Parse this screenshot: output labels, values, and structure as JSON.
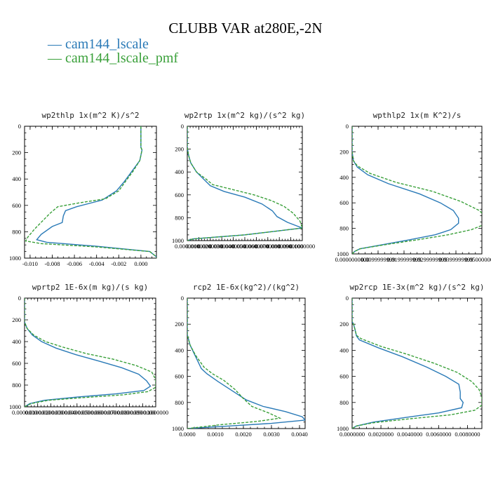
{
  "figure_title": "CLUBB VAR at280E,-2N",
  "legend": [
    {
      "label": "cam144_lscale",
      "color": "#2a7ab7",
      "dash": false
    },
    {
      "label": "cam144_lscale_pmf",
      "color": "#3aa03a",
      "dash": true
    }
  ],
  "chart_data": [
    {
      "type": "line",
      "title": "wp2thlp   1x(m^2 K)/s^2",
      "ylim": [
        1000,
        0
      ],
      "yticks": [
        0,
        200,
        400,
        600,
        800,
        1000
      ],
      "xlim": [
        -0.0105,
        0.0014
      ],
      "xticks": [
        -0.01,
        -0.008,
        -0.006,
        -0.004,
        -0.002,
        0.0
      ],
      "xtick_labels": [
        "-0.010",
        "-0.008",
        "-0.006",
        "-0.004",
        "-0.002",
        "0.000"
      ],
      "series": [
        {
          "name": "cam144_lscale",
          "points": [
            [
              0,
              0
            ],
            [
              0,
              100
            ],
            [
              0,
              160
            ],
            [
              0.0001,
              180
            ],
            [
              -0.0001,
              260
            ],
            [
              -0.0008,
              340
            ],
            [
              -0.0015,
              420
            ],
            [
              -0.0022,
              490
            ],
            [
              -0.0035,
              560
            ],
            [
              -0.0058,
              610
            ],
            [
              -0.0068,
              640
            ],
            [
              -0.007,
              680
            ],
            [
              -0.0071,
              730
            ],
            [
              -0.008,
              760
            ],
            [
              -0.009,
              820
            ],
            [
              -0.0094,
              860
            ],
            [
              -0.0085,
              880
            ],
            [
              -0.004,
              910
            ],
            [
              0.0008,
              950
            ],
            [
              0.0014,
              990
            ],
            [
              0.0014,
              1000
            ]
          ]
        },
        {
          "name": "cam144_lscale_pmf",
          "points": [
            [
              0,
              0
            ],
            [
              0,
              100
            ],
            [
              0,
              160
            ],
            [
              0.0001,
              180
            ],
            [
              -0.0001,
              260
            ],
            [
              -0.0007,
              340
            ],
            [
              -0.0014,
              420
            ],
            [
              -0.002,
              490
            ],
            [
              -0.0032,
              550
            ],
            [
              -0.0055,
              580
            ],
            [
              -0.0075,
              610
            ],
            [
              -0.0082,
              660
            ],
            [
              -0.0089,
              720
            ],
            [
              -0.0096,
              780
            ],
            [
              -0.0102,
              840
            ],
            [
              -0.0104,
              870
            ],
            [
              -0.009,
              890
            ],
            [
              -0.004,
              915
            ],
            [
              0.0008,
              950
            ],
            [
              0.0014,
              990
            ],
            [
              0.0014,
              1000
            ]
          ]
        }
      ]
    },
    {
      "type": "line",
      "title": "wp2rtp   1x(m^2 kg)/(s^2 kg)",
      "ylim": [
        1000,
        0
      ],
      "yticks": [
        0,
        200,
        400,
        600,
        800,
        1000
      ],
      "xlim": [
        0,
        0.1
      ],
      "xticks": [
        0,
        0.01,
        0.02,
        0.03,
        0.04,
        0.05,
        0.06,
        0.07,
        0.08,
        0.09,
        0.1
      ],
      "xtick_labels": [
        "0.0000000",
        "0.0100000",
        "0.0200000",
        "0.0300000",
        "0.0400000",
        "0.0500000",
        "0.0600000",
        "0.0700000",
        "0.0800000",
        "0.0900000",
        "0.1000000"
      ],
      "series": [
        {
          "name": "cam144_lscale",
          "points": [
            [
              0,
              0
            ],
            [
              0,
              180
            ],
            [
              0.001,
              250
            ],
            [
              0.003,
              320
            ],
            [
              0.008,
              400
            ],
            [
              0.015,
              470
            ],
            [
              0.02,
              520
            ],
            [
              0.032,
              570
            ],
            [
              0.05,
              620
            ],
            [
              0.065,
              680
            ],
            [
              0.074,
              740
            ],
            [
              0.078,
              790
            ],
            [
              0.087,
              840
            ],
            [
              0.1,
              890
            ],
            [
              0.05,
              950
            ],
            [
              0.005,
              985
            ],
            [
              0,
              1000
            ]
          ]
        },
        {
          "name": "cam144_lscale_pmf",
          "points": [
            [
              0,
              0
            ],
            [
              0,
              180
            ],
            [
              0.001,
              250
            ],
            [
              0.003,
              320
            ],
            [
              0.008,
              400
            ],
            [
              0.016,
              460
            ],
            [
              0.022,
              510
            ],
            [
              0.038,
              550
            ],
            [
              0.058,
              600
            ],
            [
              0.073,
              650
            ],
            [
              0.084,
              700
            ],
            [
              0.092,
              760
            ],
            [
              0.098,
              830
            ],
            [
              0.1,
              890
            ],
            [
              0.05,
              950
            ],
            [
              0.005,
              985
            ],
            [
              0,
              1000
            ]
          ]
        }
      ]
    },
    {
      "type": "line",
      "title": "wpthlp2   1x(m K^2)/s",
      "ylim": [
        1000,
        0
      ],
      "yticks": [
        0,
        200,
        400,
        600,
        800,
        1000
      ],
      "xlim": [
        0,
        0.05
      ],
      "xticks": [
        0,
        0.01,
        0.02,
        0.03,
        0.04,
        0.05
      ],
      "xtick_labels": [
        "0.0000000000",
        "0.0099999999",
        "0.0199999999",
        "0.0299999999",
        "0.0399999999",
        "0.0500000000"
      ],
      "series": [
        {
          "name": "cam144_lscale",
          "points": [
            [
              0,
              0
            ],
            [
              0,
              200
            ],
            [
              0.0005,
              270
            ],
            [
              0.002,
              320
            ],
            [
              0.006,
              380
            ],
            [
              0.014,
              450
            ],
            [
              0.026,
              530
            ],
            [
              0.034,
              600
            ],
            [
              0.039,
              660
            ],
            [
              0.041,
              720
            ],
            [
              0.041,
              760
            ],
            [
              0.038,
              810
            ],
            [
              0.032,
              850
            ],
            [
              0.022,
              890
            ],
            [
              0.011,
              930
            ],
            [
              0.003,
              960
            ],
            [
              0.001,
              980
            ],
            [
              0,
              1000
            ]
          ]
        },
        {
          "name": "cam144_lscale_pmf",
          "points": [
            [
              0,
              0
            ],
            [
              0,
              200
            ],
            [
              0.0005,
              270
            ],
            [
              0.002,
              310
            ],
            [
              0.007,
              370
            ],
            [
              0.017,
              440
            ],
            [
              0.031,
              510
            ],
            [
              0.042,
              590
            ],
            [
              0.049,
              660
            ],
            [
              0.052,
              720
            ],
            [
              0.052,
              760
            ],
            [
              0.046,
              810
            ],
            [
              0.037,
              850
            ],
            [
              0.025,
              890
            ],
            [
              0.012,
              930
            ],
            [
              0.003,
              960
            ],
            [
              0.001,
              980
            ],
            [
              0,
              1000
            ]
          ]
        }
      ]
    },
    {
      "type": "line",
      "title": "wprtp2   1E-6x(m kg)/(s kg)",
      "ylim": [
        1000,
        0
      ],
      "yticks": [
        0,
        200,
        400,
        600,
        800,
        1000
      ],
      "xlim": [
        0,
        0.1
      ],
      "xticks": [
        0,
        0.01,
        0.02,
        0.03,
        0.04,
        0.05,
        0.06,
        0.07,
        0.08,
        0.09,
        0.1
      ],
      "xtick_labels": [
        "0.0000000",
        "0.0100000",
        "0.0200000",
        "0.0300000",
        "0.0400000",
        "0.0500000",
        "0.0600000",
        "0.0700000",
        "0.0800000",
        "0.0900000",
        "0.1000000"
      ],
      "series": [
        {
          "name": "cam144_lscale",
          "points": [
            [
              0,
              0
            ],
            [
              0,
              220
            ],
            [
              0.002,
              280
            ],
            [
              0.006,
              340
            ],
            [
              0.013,
              400
            ],
            [
              0.024,
              460
            ],
            [
              0.039,
              520
            ],
            [
              0.057,
              580
            ],
            [
              0.074,
              640
            ],
            [
              0.087,
              700
            ],
            [
              0.093,
              760
            ],
            [
              0.096,
              810
            ],
            [
              0.091,
              850
            ],
            [
              0.07,
              880
            ],
            [
              0.04,
              910
            ],
            [
              0.015,
              940
            ],
            [
              0.004,
              970
            ],
            [
              0,
              1000
            ]
          ]
        },
        {
          "name": "cam144_lscale_pmf",
          "points": [
            [
              0,
              0
            ],
            [
              0,
              220
            ],
            [
              0.002,
              280
            ],
            [
              0.007,
              340
            ],
            [
              0.016,
              400
            ],
            [
              0.029,
              450
            ],
            [
              0.047,
              510
            ],
            [
              0.067,
              560
            ],
            [
              0.085,
              620
            ],
            [
              0.097,
              680
            ],
            [
              0.1,
              750
            ],
            [
              0.1,
              820
            ],
            [
              0.094,
              860
            ],
            [
              0.075,
              890
            ],
            [
              0.045,
              915
            ],
            [
              0.018,
              940
            ],
            [
              0.005,
              970
            ],
            [
              0,
              1000
            ]
          ]
        }
      ]
    },
    {
      "type": "line",
      "title": "rcp2   1E-6x(kg^2)/(kg^2)",
      "ylim": [
        1000,
        0
      ],
      "yticks": [
        0,
        200,
        400,
        600,
        800,
        1000
      ],
      "xlim": [
        0,
        0.0042
      ],
      "xticks": [
        0,
        0.001,
        0.002,
        0.003,
        0.004
      ],
      "xtick_labels": [
        "0.0000",
        "0.0010",
        "0.0020",
        "0.0030",
        "0.0040"
      ],
      "series": [
        {
          "name": "cam144_lscale",
          "points": [
            [
              0,
              0
            ],
            [
              0,
              280
            ],
            [
              0.0001,
              360
            ],
            [
              0.0003,
              450
            ],
            [
              0.0005,
              540
            ],
            [
              0.0007,
              580
            ],
            [
              0.0011,
              640
            ],
            [
              0.0016,
              710
            ],
            [
              0.0021,
              780
            ],
            [
              0.0027,
              830
            ],
            [
              0.0035,
              870
            ],
            [
              0.0041,
              910
            ],
            [
              0.0042,
              935
            ],
            [
              0.003,
              960
            ],
            [
              0.0015,
              980
            ],
            [
              0,
              1000
            ]
          ]
        },
        {
          "name": "cam144_lscale_pmf",
          "points": [
            [
              0,
              0
            ],
            [
              0,
              280
            ],
            [
              0.0001,
              360
            ],
            [
              0.0003,
              440
            ],
            [
              0.0006,
              530
            ],
            [
              0.0009,
              580
            ],
            [
              0.0013,
              630
            ],
            [
              0.0017,
              700
            ],
            [
              0.002,
              770
            ],
            [
              0.0023,
              830
            ],
            [
              0.0029,
              880
            ],
            [
              0.0033,
              920
            ],
            [
              0.0025,
              945
            ],
            [
              0.0012,
              970
            ],
            [
              0,
              1000
            ]
          ]
        }
      ]
    },
    {
      "type": "line",
      "title": "wp2rcp   1E-3x(m^2 kg)/(s^2 kg)",
      "ylim": [
        1000,
        0
      ],
      "yticks": [
        0,
        200,
        400,
        600,
        800,
        1000
      ],
      "xlim": [
        0,
        0.009
      ],
      "xticks": [
        0,
        0.002,
        0.004,
        0.006,
        0.008
      ],
      "xtick_labels": [
        "0.0000000",
        "0.0020000",
        "0.0040000",
        "0.0060000",
        "0.0080000"
      ],
      "series": [
        {
          "name": "cam144_lscale",
          "points": [
            [
              0,
              0
            ],
            [
              0,
              180
            ],
            [
              0.0001,
              200
            ],
            [
              0.0002,
              240
            ],
            [
              0.0003,
              290
            ],
            [
              0.0005,
              320
            ],
            [
              0.0018,
              380
            ],
            [
              0.0035,
              450
            ],
            [
              0.0052,
              530
            ],
            [
              0.0065,
              600
            ],
            [
              0.0074,
              660
            ],
            [
              0.0075,
              720
            ],
            [
              0.0075,
              770
            ],
            [
              0.0077,
              800
            ],
            [
              0.0076,
              840
            ],
            [
              0.006,
              880
            ],
            [
              0.004,
              910
            ],
            [
              0.0015,
              950
            ],
            [
              0.0003,
              980
            ],
            [
              0,
              1000
            ]
          ]
        },
        {
          "name": "cam144_lscale_pmf",
          "points": [
            [
              0,
              0
            ],
            [
              0,
              180
            ],
            [
              0.0001,
              200
            ],
            [
              0.0002,
              240
            ],
            [
              0.0003,
              285
            ],
            [
              0.0006,
              310
            ],
            [
              0.002,
              370
            ],
            [
              0.0038,
              430
            ],
            [
              0.0057,
              500
            ],
            [
              0.0073,
              570
            ],
            [
              0.0083,
              640
            ],
            [
              0.0088,
              700
            ],
            [
              0.009,
              760
            ],
            [
              0.009,
              820
            ],
            [
              0.0085,
              860
            ],
            [
              0.0068,
              895
            ],
            [
              0.004,
              925
            ],
            [
              0.0015,
              955
            ],
            [
              0.0003,
              980
            ],
            [
              0,
              1000
            ]
          ]
        }
      ]
    }
  ]
}
